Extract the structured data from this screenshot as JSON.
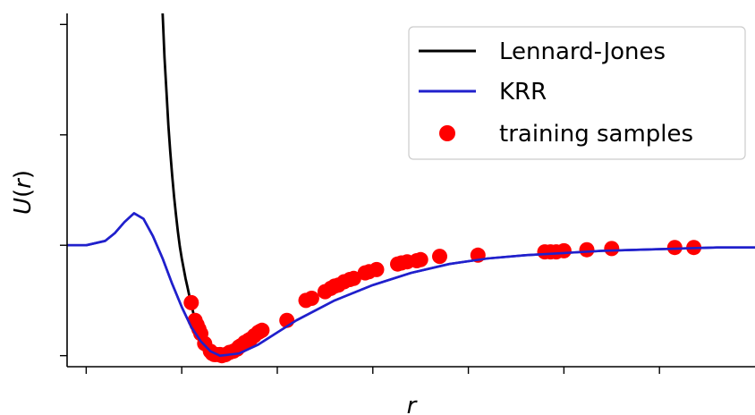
{
  "chart_data": {
    "type": "line",
    "title": "",
    "xlabel": "r",
    "ylabel": "U(r)",
    "xlim": [
      0.8,
      4.4
    ],
    "ylim": [
      -1.1,
      2.1
    ],
    "x_ticks": [
      0.9,
      1.4,
      1.9,
      2.4,
      2.9,
      3.4,
      3.9
    ],
    "y_ticks": [
      -1,
      0,
      1,
      2
    ],
    "tick_labels_shown": false,
    "legend_position": "top-right",
    "grid": false,
    "colors": {
      "lennard_jones": "#000000",
      "krr": "#2020cc",
      "samples": "#ff0000"
    },
    "series": [
      {
        "name": "Lennard-Jones",
        "type": "line",
        "color": "#000000",
        "x": [
          1.3,
          1.31,
          1.32,
          1.33,
          1.34,
          1.35,
          1.36,
          1.37,
          1.38,
          1.39,
          1.4,
          1.41,
          1.42,
          1.43,
          1.44,
          1.45,
          1.46,
          1.47,
          1.48,
          1.49,
          1.5,
          1.51,
          1.52,
          1.53,
          1.55,
          1.57,
          1.59,
          1.6
        ],
        "y": [
          2.1,
          1.7,
          1.39,
          1.09,
          0.85,
          0.63,
          0.44,
          0.27,
          0.12,
          -0.01,
          -0.12,
          -0.21,
          -0.3,
          -0.38,
          -0.46,
          -0.53,
          -0.61,
          -0.69,
          -0.76,
          -0.82,
          -0.88,
          -0.93,
          -0.97,
          -0.99,
          -1.0,
          -0.99,
          -0.97,
          -0.96
        ]
      },
      {
        "name": "KRR",
        "type": "line",
        "color": "#2020cc",
        "x": [
          0.8,
          0.9,
          1.0,
          1.05,
          1.1,
          1.15,
          1.2,
          1.25,
          1.3,
          1.35,
          1.4,
          1.45,
          1.5,
          1.55,
          1.6,
          1.7,
          1.8,
          1.9,
          2.0,
          2.2,
          2.4,
          2.6,
          2.8,
          3.0,
          3.2,
          3.4,
          3.6,
          3.8,
          4.0,
          4.2,
          4.4
        ],
        "y": [
          0.0,
          0.0,
          0.04,
          0.11,
          0.21,
          0.29,
          0.24,
          0.08,
          -0.12,
          -0.35,
          -0.56,
          -0.74,
          -0.87,
          -0.96,
          -1.0,
          -0.98,
          -0.9,
          -0.79,
          -0.68,
          -0.5,
          -0.36,
          -0.25,
          -0.17,
          -0.12,
          -0.09,
          -0.07,
          -0.05,
          -0.04,
          -0.03,
          -0.02,
          -0.02
        ]
      },
      {
        "name": "training samples",
        "type": "scatter",
        "color": "#ff0000",
        "x": [
          1.45,
          1.47,
          1.48,
          1.49,
          1.5,
          1.52,
          1.55,
          1.56,
          1.57,
          1.58,
          1.6,
          1.61,
          1.63,
          1.65,
          1.67,
          1.69,
          1.7,
          1.71,
          1.73,
          1.75,
          1.76,
          1.78,
          1.8,
          1.81,
          1.82,
          1.95,
          2.05,
          2.08,
          2.15,
          2.18,
          2.2,
          2.22,
          2.25,
          2.28,
          2.3,
          2.36,
          2.38,
          2.42,
          2.53,
          2.55,
          2.58,
          2.63,
          2.65,
          2.75,
          2.95,
          3.3,
          3.33,
          3.36,
          3.4,
          3.52,
          3.65,
          3.98,
          4.08
        ],
        "y": [
          -0.52,
          -0.68,
          -0.72,
          -0.76,
          -0.8,
          -0.89,
          -0.96,
          -0.98,
          -0.99,
          -0.99,
          -0.99,
          -1.0,
          -0.99,
          -0.97,
          -0.96,
          -0.94,
          -0.92,
          -0.91,
          -0.88,
          -0.86,
          -0.85,
          -0.82,
          -0.79,
          -0.78,
          -0.77,
          -0.68,
          -0.5,
          -0.48,
          -0.42,
          -0.39,
          -0.37,
          -0.36,
          -0.33,
          -0.31,
          -0.3,
          -0.25,
          -0.24,
          -0.22,
          -0.17,
          -0.16,
          -0.15,
          -0.14,
          -0.13,
          -0.1,
          -0.09,
          -0.06,
          -0.06,
          -0.06,
          -0.05,
          -0.04,
          -0.03,
          -0.02,
          -0.02
        ]
      }
    ]
  }
}
